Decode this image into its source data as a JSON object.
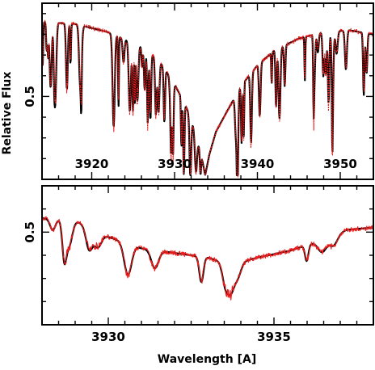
{
  "chart_data": [
    {
      "type": "line",
      "title": "",
      "xlabel": "",
      "ylabel": "Relative Flux",
      "xlim": [
        3914,
        3954
      ],
      "ylim": [
        0.1,
        0.95
      ],
      "xticks": [
        3920,
        3930,
        3940,
        3950
      ],
      "yticks": [
        0.5
      ],
      "tick_labels_inside": true,
      "grid": false,
      "legend": "none",
      "continuum_shape": {
        "line_center": 3933.7,
        "points": [
          [
            3914.0,
            0.86
          ],
          [
            3918.0,
            0.85
          ],
          [
            3922.0,
            0.81
          ],
          [
            3926.0,
            0.74
          ],
          [
            3928.0,
            0.68
          ],
          [
            3930.0,
            0.56
          ],
          [
            3931.5,
            0.44
          ],
          [
            3932.5,
            0.33
          ],
          [
            3933.2,
            0.22
          ],
          [
            3933.7,
            0.12
          ],
          [
            3934.2,
            0.22
          ],
          [
            3935.0,
            0.33
          ],
          [
            3936.5,
            0.44
          ],
          [
            3938.0,
            0.55
          ],
          [
            3940.0,
            0.65
          ],
          [
            3942.0,
            0.72
          ],
          [
            3945.0,
            0.78
          ],
          [
            3948.0,
            0.81
          ],
          [
            3951.0,
            0.82
          ],
          [
            3954.0,
            0.8
          ]
        ]
      },
      "series": [
        {
          "color": "#000000",
          "style": "solid-thick"
        },
        {
          "color": "#ee1c1c",
          "style": "dotted-thin"
        }
      ]
    },
    {
      "type": "line",
      "title": "",
      "xlabel": "Wavelength [A]",
      "ylabel": "",
      "xlim": [
        3928.0,
        3938.0
      ],
      "ylim": [
        0.1,
        0.7
      ],
      "xticks": [
        3930,
        3935
      ],
      "yticks": [
        0.5
      ],
      "grid": false,
      "legend": "none",
      "continuum_shape": {
        "points": [
          [
            3928.0,
            0.56
          ],
          [
            3929.0,
            0.55
          ],
          [
            3930.0,
            0.48
          ],
          [
            3931.0,
            0.43
          ],
          [
            3932.0,
            0.41
          ],
          [
            3933.0,
            0.39
          ],
          [
            3933.7,
            0.36
          ],
          [
            3934.5,
            0.39
          ],
          [
            3935.5,
            0.42
          ],
          [
            3936.5,
            0.47
          ],
          [
            3937.2,
            0.51
          ],
          [
            3938.0,
            0.52
          ]
        ]
      },
      "series": [
        {
          "color": "#000000",
          "style": "solid-thick"
        },
        {
          "color": "#ee1c1c",
          "style": "solid-thin"
        }
      ]
    }
  ]
}
